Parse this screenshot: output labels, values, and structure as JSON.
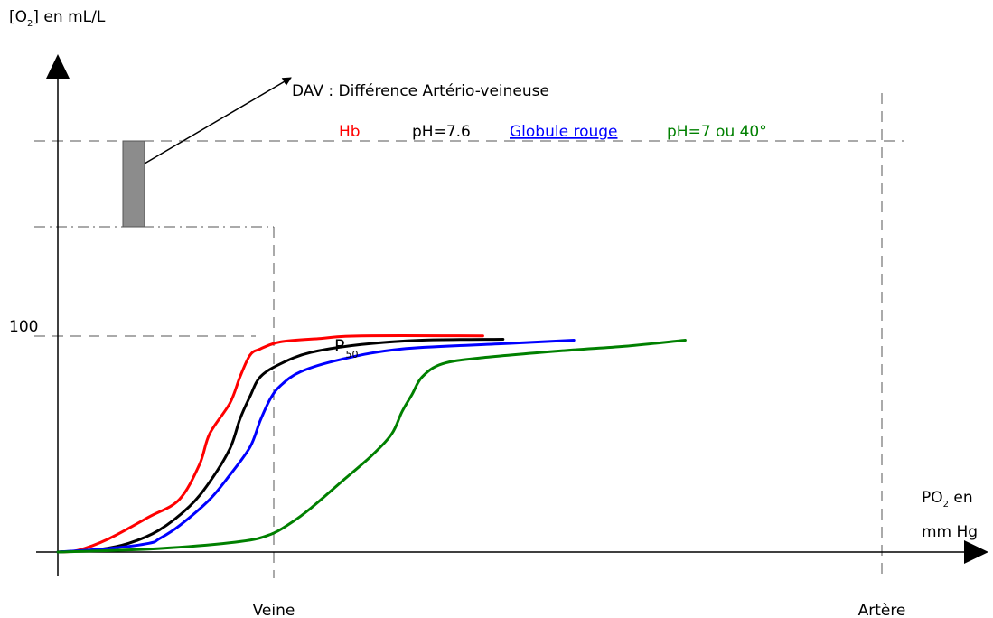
{
  "chart_data": {
    "type": "line",
    "ylabel": {
      "pre": "[O",
      "sub": "2",
      "post": "] en mL/L"
    },
    "xlabel": {
      "pre": "PO",
      "sub": "2",
      "post": " en",
      "line2": "mm Hg"
    },
    "yticks": [
      {
        "value": 100,
        "label": "100"
      }
    ],
    "x_markers": [
      {
        "label": "Veine"
      },
      {
        "label": "Artère"
      }
    ],
    "annotation": "DAV : Différence Artério-veineuse",
    "p50": {
      "main": "P",
      "sub": "50"
    },
    "series": [
      {
        "name": "Hb",
        "color": "#ff0000",
        "points": [
          [
            0,
            0
          ],
          [
            2,
            2
          ],
          [
            5,
            15
          ],
          [
            9,
            40
          ],
          [
            12,
            60
          ],
          [
            14,
            100
          ],
          [
            15,
            135
          ],
          [
            17,
            170
          ],
          [
            18,
            200
          ],
          [
            19,
            225
          ],
          [
            20,
            232
          ],
          [
            22,
            240
          ],
          [
            26,
            244
          ],
          [
            30,
            247
          ],
          [
            42,
            247
          ]
        ]
      },
      {
        "name": "pH=7.6",
        "color": "#000000",
        "points": [
          [
            0,
            0
          ],
          [
            4,
            3
          ],
          [
            7,
            10
          ],
          [
            10,
            25
          ],
          [
            13,
            52
          ],
          [
            15,
            80
          ],
          [
            17,
            118
          ],
          [
            18,
            152
          ],
          [
            19,
            178
          ],
          [
            20,
            200
          ],
          [
            22,
            215
          ],
          [
            25,
            228
          ],
          [
            30,
            237
          ],
          [
            36,
            242
          ],
          [
            44,
            243
          ]
        ]
      },
      {
        "name": "Globule rouge",
        "color": "#0000ff",
        "points": [
          [
            0,
            0
          ],
          [
            5,
            4
          ],
          [
            9,
            10
          ],
          [
            10,
            15
          ],
          [
            12,
            30
          ],
          [
            15,
            60
          ],
          [
            17,
            88
          ],
          [
            19,
            120
          ],
          [
            20,
            150
          ],
          [
            21,
            175
          ],
          [
            22,
            190
          ],
          [
            24,
            206
          ],
          [
            28,
            220
          ],
          [
            34,
            232
          ],
          [
            44,
            238
          ],
          [
            51,
            242
          ]
        ]
      },
      {
        "name": "pH=7 ou 40°",
        "color": "#008000",
        "points": [
          [
            0,
            0
          ],
          [
            10,
            4
          ],
          [
            18,
            12
          ],
          [
            21,
            20
          ],
          [
            23,
            33
          ],
          [
            25,
            50
          ],
          [
            28,
            80
          ],
          [
            31,
            110
          ],
          [
            33,
            135
          ],
          [
            34,
            160
          ],
          [
            35,
            180
          ],
          [
            36,
            200
          ],
          [
            38,
            215
          ],
          [
            42,
            222
          ],
          [
            50,
            230
          ],
          [
            56,
            235
          ],
          [
            62,
            242
          ]
        ]
      }
    ],
    "series_labels": [
      "Hb",
      "pH=7.6",
      "Globule rouge",
      "pH=7 ou 40°"
    ]
  }
}
